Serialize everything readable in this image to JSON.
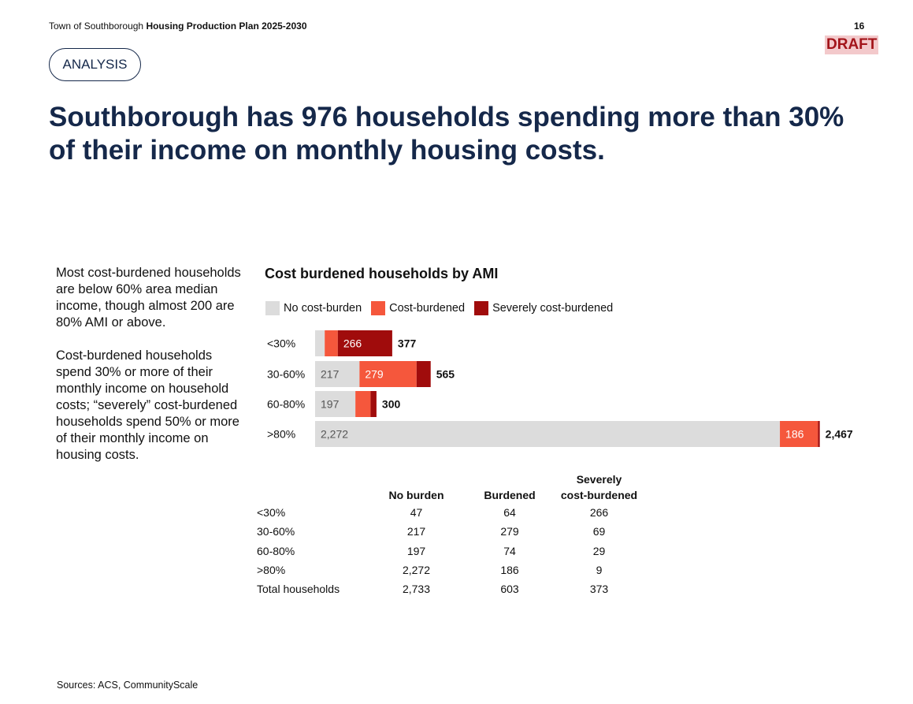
{
  "header": {
    "org": "Town of Southborough",
    "doc_title": "Housing Production Plan 2025-2030",
    "page_number": "16",
    "draft_label": "DRAFT"
  },
  "section_tag": "ANALYSIS",
  "headline": "Southborough has 976 households spending more than 30% of their income on monthly housing costs.",
  "side_text": {
    "paragraph1": "Most cost-burdened households are below 60% area median income, though almost 200 are 80% AMI or above.",
    "paragraph2": "Cost-burdened households spend 30% or more of their monthly income on household costs; “severely” cost-burdened households spend 50% or more of their monthly income on housing costs."
  },
  "colors": {
    "no_burden": "#dcdcdc",
    "burdened": "#f5573c",
    "severe": "#a00c0c",
    "headline": "#15284a",
    "draft": "#a3141a"
  },
  "chart_data": {
    "type": "bar",
    "orientation": "horizontal",
    "stacked": true,
    "title": "Cost burdened households by AMI",
    "categories": [
      "<30%",
      "30-60%",
      "60-80%",
      ">80%"
    ],
    "series": [
      {
        "name": "No cost-burden",
        "values": [
          47,
          217,
          197,
          2272
        ],
        "color": "#dcdcdc"
      },
      {
        "name": "Cost-burdened",
        "values": [
          64,
          279,
          74,
          186
        ],
        "color": "#f5573c"
      },
      {
        "name": "Severely cost-burdened",
        "values": [
          266,
          69,
          29,
          9
        ],
        "color": "#a00c0c"
      }
    ],
    "segment_labels": [
      [
        "",
        "",
        "266"
      ],
      [
        "217",
        "279",
        ""
      ],
      [
        "197",
        "",
        ""
      ],
      [
        "2,272",
        "186",
        ""
      ]
    ],
    "totals": [
      "377",
      "565",
      "300",
      "2,467"
    ],
    "legend_position": "top-left",
    "grid": false
  },
  "table": {
    "headers": [
      "",
      "No burden",
      "Burdened",
      "Severely cost-burdened"
    ],
    "header_lines": [
      [
        ""
      ],
      [
        "No burden"
      ],
      [
        "Burdened"
      ],
      [
        "Severely",
        "cost-burdened"
      ]
    ],
    "rows": [
      [
        "<30%",
        "47",
        "64",
        "266"
      ],
      [
        "30-60%",
        "217",
        "279",
        "69"
      ],
      [
        "60-80%",
        "197",
        "74",
        "29"
      ],
      [
        ">80%",
        "2,272",
        "186",
        "9"
      ],
      [
        "Total households",
        "2,733",
        "603",
        "373"
      ]
    ]
  },
  "sources": "Sources: ACS, CommunityScale"
}
